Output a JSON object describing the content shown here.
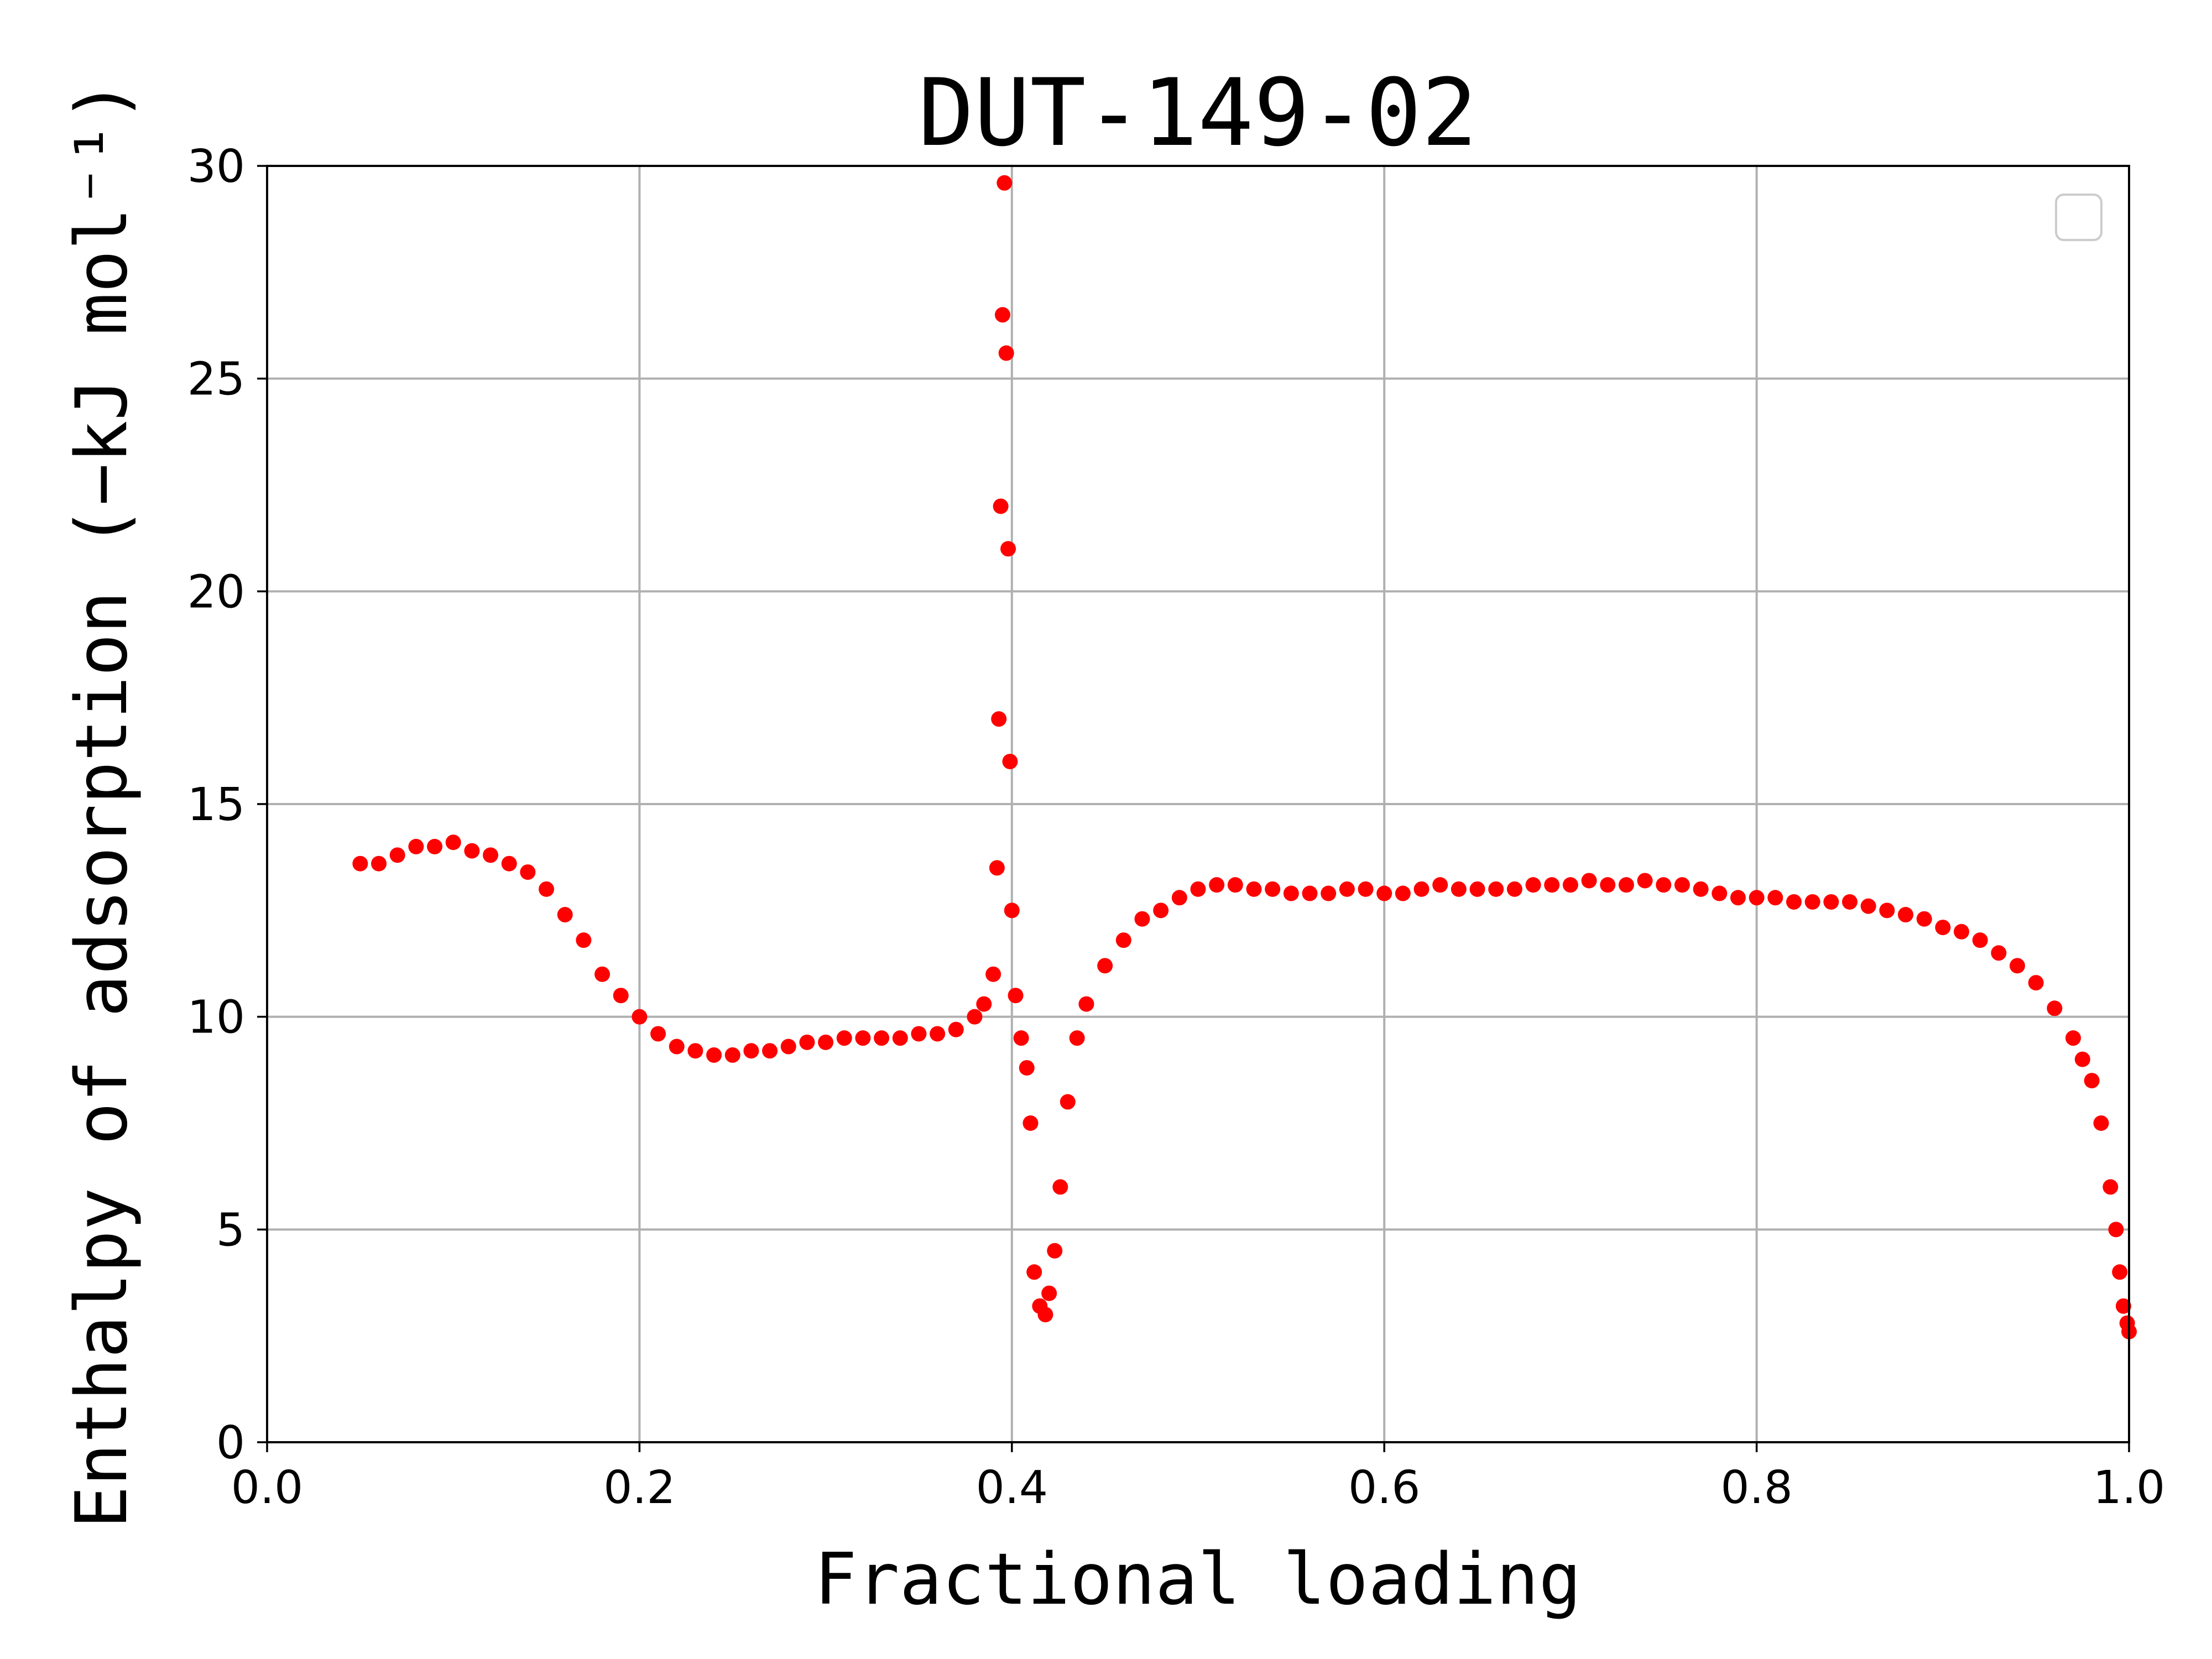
{
  "chart_data": {
    "type": "scatter",
    "title": "DUT-149-02",
    "xlabel": "Fractional loading",
    "ylabel": "Enthalpy of adsorption (−kJ mol⁻¹)",
    "xlim": [
      0.0,
      1.0
    ],
    "ylim": [
      0,
      30
    ],
    "x_ticks": [
      "0.0",
      "0.2",
      "0.4",
      "0.6",
      "0.8",
      "1.0"
    ],
    "y_ticks": [
      "0",
      "5",
      "10",
      "15",
      "20",
      "25",
      "30"
    ],
    "grid": true,
    "legend": {
      "placement": "top-right",
      "entries": []
    },
    "colors": {
      "series": "#ff0000",
      "grid": "#b0b0b0",
      "axes": "#000000"
    },
    "series": [
      {
        "x": [
          0.05,
          0.06,
          0.07,
          0.08,
          0.09,
          0.1,
          0.11,
          0.12,
          0.13,
          0.14,
          0.15,
          0.16,
          0.17,
          0.18,
          0.19,
          0.2,
          0.21,
          0.22,
          0.23,
          0.24,
          0.25,
          0.26,
          0.27,
          0.28,
          0.29,
          0.3,
          0.31,
          0.32,
          0.33,
          0.34,
          0.35,
          0.36,
          0.37,
          0.38,
          0.385,
          0.39,
          0.392,
          0.393,
          0.394,
          0.395,
          0.396,
          0.397,
          0.398,
          0.399,
          0.4,
          0.402,
          0.405,
          0.408,
          0.41,
          0.412,
          0.415,
          0.418,
          0.42,
          0.423,
          0.426,
          0.43,
          0.435,
          0.44,
          0.45,
          0.46,
          0.47,
          0.48,
          0.49,
          0.5,
          0.51,
          0.52,
          0.53,
          0.54,
          0.55,
          0.56,
          0.57,
          0.58,
          0.59,
          0.6,
          0.61,
          0.62,
          0.63,
          0.64,
          0.65,
          0.66,
          0.67,
          0.68,
          0.69,
          0.7,
          0.71,
          0.72,
          0.73,
          0.74,
          0.75,
          0.76,
          0.77,
          0.78,
          0.79,
          0.8,
          0.81,
          0.82,
          0.83,
          0.84,
          0.85,
          0.86,
          0.87,
          0.88,
          0.89,
          0.9,
          0.91,
          0.92,
          0.93,
          0.94,
          0.95,
          0.96,
          0.97,
          0.975,
          0.98,
          0.985,
          0.99,
          0.993,
          0.995,
          0.997,
          0.999,
          1.0
        ],
        "y": [
          13.6,
          13.6,
          13.8,
          14.0,
          14.0,
          14.1,
          13.9,
          13.8,
          13.6,
          13.4,
          13.0,
          12.4,
          11.8,
          11.0,
          10.5,
          10.0,
          9.6,
          9.3,
          9.2,
          9.1,
          9.1,
          9.2,
          9.2,
          9.3,
          9.4,
          9.4,
          9.5,
          9.5,
          9.5,
          9.5,
          9.6,
          9.6,
          9.7,
          10.0,
          10.3,
          11.0,
          13.5,
          17.0,
          22.0,
          26.5,
          29.6,
          25.6,
          21.0,
          16.0,
          12.5,
          10.5,
          9.5,
          8.8,
          7.5,
          4.0,
          3.2,
          3.0,
          3.5,
          4.5,
          6.0,
          8.0,
          9.5,
          10.3,
          11.2,
          11.8,
          12.3,
          12.5,
          12.8,
          13.0,
          13.1,
          13.1,
          13.0,
          13.0,
          12.9,
          12.9,
          12.9,
          13.0,
          13.0,
          12.9,
          12.9,
          13.0,
          13.1,
          13.0,
          13.0,
          13.0,
          13.0,
          13.1,
          13.1,
          13.1,
          13.2,
          13.1,
          13.1,
          13.2,
          13.1,
          13.1,
          13.0,
          12.9,
          12.8,
          12.8,
          12.8,
          12.7,
          12.7,
          12.7,
          12.7,
          12.6,
          12.5,
          12.4,
          12.3,
          12.1,
          12.0,
          11.8,
          11.5,
          11.2,
          10.8,
          10.2,
          9.5,
          9.0,
          8.5,
          7.5,
          6.0,
          5.0,
          4.0,
          3.2,
          2.8,
          2.6
        ]
      }
    ]
  }
}
